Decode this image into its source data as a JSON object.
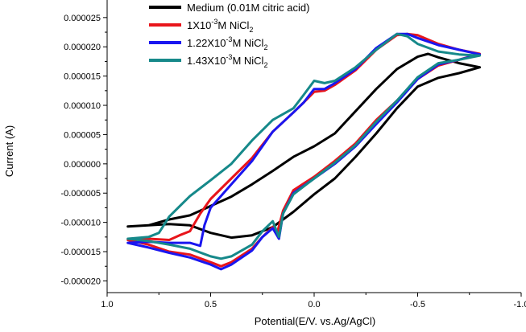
{
  "chart_data": {
    "type": "line",
    "xlabel": "Potential(E/V. vs.Ag/AgCl)",
    "ylabel": "Current (A)",
    "xlim": [
      1.0,
      -1.0
    ],
    "ylim": [
      -2.2e-05,
      2.8e-05
    ],
    "x_ticks": [
      {
        "value": 1.0,
        "label": "1.0"
      },
      {
        "value": 0.5,
        "label": "0.5"
      },
      {
        "value": 0.0,
        "label": "0.0"
      },
      {
        "value": -0.5,
        "label": "-0.5"
      },
      {
        "value": -1.0,
        "label": "-1.0"
      }
    ],
    "y_ticks": [
      {
        "value": -2e-05,
        "label": "-0.000020"
      },
      {
        "value": -1.5e-05,
        "label": "-0.000015"
      },
      {
        "value": -1e-05,
        "label": "-0.000010"
      },
      {
        "value": -5e-06,
        "label": "-0.000005"
      },
      {
        "value": 0.0,
        "label": "0.000000"
      },
      {
        "value": 5e-06,
        "label": "0.000005"
      },
      {
        "value": 1e-05,
        "label": "0.000010"
      },
      {
        "value": 1.5e-05,
        "label": "0.000015"
      },
      {
        "value": 2e-05,
        "label": "0.000020"
      },
      {
        "value": 2.5e-05,
        "label": "0.000025"
      }
    ],
    "legend_position": "top",
    "grid": false,
    "series": [
      {
        "name": "Medium (0.01M citric acid)",
        "legend_main": "Medium (0.01M citric acid)",
        "legend_sup": "",
        "legend_tail": "",
        "legend_sub": "",
        "color": "#000000",
        "points": [
          [
            0.9,
            -1.07e-05
          ],
          [
            0.8,
            -1.05e-05
          ],
          [
            0.7,
            -9.5e-06
          ],
          [
            0.6,
            -8.8e-06
          ],
          [
            0.5,
            -7.2e-06
          ],
          [
            0.4,
            -5.6e-06
          ],
          [
            0.3,
            -3.5e-06
          ],
          [
            0.2,
            -1.2e-06
          ],
          [
            0.1,
            1.2e-06
          ],
          [
            0.0,
            3e-06
          ],
          [
            -0.1,
            5.2e-06
          ],
          [
            -0.2,
            9e-06
          ],
          [
            -0.3,
            1.28e-05
          ],
          [
            -0.4,
            1.62e-05
          ],
          [
            -0.5,
            1.83e-05
          ],
          [
            -0.55,
            1.88e-05
          ],
          [
            -0.6,
            1.82e-05
          ],
          [
            -0.7,
            1.72e-05
          ],
          [
            -0.8,
            1.65e-05
          ],
          [
            -0.7,
            1.55e-05
          ],
          [
            -0.6,
            1.47e-05
          ],
          [
            -0.5,
            1.32e-05
          ],
          [
            -0.4,
            9.5e-06
          ],
          [
            -0.3,
            5.2e-06
          ],
          [
            -0.2,
            1.2e-06
          ],
          [
            -0.1,
            -2.5e-06
          ],
          [
            0.0,
            -5.2e-06
          ],
          [
            0.1,
            -8.2e-06
          ],
          [
            0.2,
            -1.08e-05
          ],
          [
            0.3,
            -1.22e-05
          ],
          [
            0.4,
            -1.26e-05
          ],
          [
            0.5,
            -1.18e-05
          ],
          [
            0.6,
            -1.05e-05
          ],
          [
            0.7,
            -1.03e-05
          ],
          [
            0.8,
            -1.05e-05
          ],
          [
            0.9,
            -1.07e-05
          ]
        ]
      },
      {
        "name": "1X10-3M NiCl2",
        "legend_main": "1X10",
        "legend_sup": "-3",
        "legend_tail": "M NiCl",
        "legend_sub": "2",
        "color": "#e8151b",
        "points": [
          [
            0.9,
            -1.3e-05
          ],
          [
            0.8,
            -1.28e-05
          ],
          [
            0.7,
            -1.3e-05
          ],
          [
            0.65,
            -1.22e-05
          ],
          [
            0.6,
            -1.15e-05
          ],
          [
            0.55,
            -8.5e-06
          ],
          [
            0.5,
            -6e-06
          ],
          [
            0.4,
            -2.5e-06
          ],
          [
            0.3,
            1e-06
          ],
          [
            0.2,
            5.5e-06
          ],
          [
            0.1,
            8.8e-06
          ],
          [
            0.05,
            1.05e-05
          ],
          [
            0.0,
            1.23e-05
          ],
          [
            -0.05,
            1.25e-05
          ],
          [
            -0.1,
            1.35e-05
          ],
          [
            -0.2,
            1.6e-05
          ],
          [
            -0.3,
            1.95e-05
          ],
          [
            -0.4,
            2.2e-05
          ],
          [
            -0.45,
            2.22e-05
          ],
          [
            -0.5,
            2.2e-05
          ],
          [
            -0.6,
            2.05e-05
          ],
          [
            -0.7,
            1.95e-05
          ],
          [
            -0.8,
            1.88e-05
          ],
          [
            -0.7,
            1.78e-05
          ],
          [
            -0.6,
            1.68e-05
          ],
          [
            -0.5,
            1.45e-05
          ],
          [
            -0.4,
            1.08e-05
          ],
          [
            -0.3,
            7.5e-06
          ],
          [
            -0.2,
            3.5e-06
          ],
          [
            -0.1,
            5e-07
          ],
          [
            0.0,
            -2.2e-06
          ],
          [
            0.1,
            -4.5e-06
          ],
          [
            0.15,
            -8e-06
          ],
          [
            0.18,
            -1.2e-05
          ],
          [
            0.2,
            -1.08e-05
          ],
          [
            0.25,
            -1.25e-05
          ],
          [
            0.3,
            -1.45e-05
          ],
          [
            0.4,
            -1.68e-05
          ],
          [
            0.45,
            -1.75e-05
          ],
          [
            0.5,
            -1.68e-05
          ],
          [
            0.6,
            -1.55e-05
          ],
          [
            0.7,
            -1.5e-05
          ],
          [
            0.8,
            -1.38e-05
          ],
          [
            0.9,
            -1.3e-05
          ]
        ]
      },
      {
        "name": "1.22X10-3M NiCl2",
        "legend_main": "1.22X10",
        "legend_sup": "-3",
        "legend_tail": "M NiCl",
        "legend_sub": "2",
        "color": "#1a16f0",
        "points": [
          [
            0.9,
            -1.35e-05
          ],
          [
            0.8,
            -1.33e-05
          ],
          [
            0.7,
            -1.35e-05
          ],
          [
            0.6,
            -1.35e-05
          ],
          [
            0.55,
            -1.4e-05
          ],
          [
            0.53,
            -1.05e-05
          ],
          [
            0.5,
            -7.5e-06
          ],
          [
            0.4,
            -3.5e-06
          ],
          [
            0.3,
            5e-07
          ],
          [
            0.2,
            5.5e-06
          ],
          [
            0.1,
            8.8e-06
          ],
          [
            0.05,
            1.05e-05
          ],
          [
            0.0,
            1.28e-05
          ],
          [
            -0.05,
            1.28e-05
          ],
          [
            -0.1,
            1.38e-05
          ],
          [
            -0.2,
            1.62e-05
          ],
          [
            -0.3,
            1.98e-05
          ],
          [
            -0.4,
            2.22e-05
          ],
          [
            -0.45,
            2.22e-05
          ],
          [
            -0.5,
            2.15e-05
          ],
          [
            -0.6,
            2.03e-05
          ],
          [
            -0.7,
            1.95e-05
          ],
          [
            -0.8,
            1.87e-05
          ],
          [
            -0.7,
            1.78e-05
          ],
          [
            -0.6,
            1.7e-05
          ],
          [
            -0.5,
            1.45e-05
          ],
          [
            -0.4,
            1.05e-05
          ],
          [
            -0.3,
            6.8e-06
          ],
          [
            -0.2,
            3e-06
          ],
          [
            -0.1,
            0.0
          ],
          [
            0.0,
            -2.5e-06
          ],
          [
            0.1,
            -5e-06
          ],
          [
            0.15,
            -8.5e-06
          ],
          [
            0.17,
            -1.28e-05
          ],
          [
            0.2,
            -1.1e-05
          ],
          [
            0.25,
            -1.25e-05
          ],
          [
            0.3,
            -1.48e-05
          ],
          [
            0.4,
            -1.72e-05
          ],
          [
            0.45,
            -1.8e-05
          ],
          [
            0.5,
            -1.72e-05
          ],
          [
            0.6,
            -1.6e-05
          ],
          [
            0.7,
            -1.52e-05
          ],
          [
            0.8,
            -1.43e-05
          ],
          [
            0.9,
            -1.35e-05
          ]
        ]
      },
      {
        "name": "1.43X10-3M NiCl2",
        "legend_main": "1.43X10",
        "legend_sup": "-3",
        "legend_tail": "M NiCl",
        "legend_sub": "2",
        "color": "#16898a",
        "points": [
          [
            0.9,
            -1.28e-05
          ],
          [
            0.8,
            -1.25e-05
          ],
          [
            0.75,
            -1.18e-05
          ],
          [
            0.7,
            -9e-06
          ],
          [
            0.6,
            -5.5e-06
          ],
          [
            0.5,
            -2.8e-06
          ],
          [
            0.4,
            0.0
          ],
          [
            0.3,
            4e-06
          ],
          [
            0.2,
            7.5e-06
          ],
          [
            0.1,
            9.5e-06
          ],
          [
            0.05,
            1.18e-05
          ],
          [
            0.0,
            1.42e-05
          ],
          [
            -0.05,
            1.38e-05
          ],
          [
            -0.1,
            1.42e-05
          ],
          [
            -0.2,
            1.65e-05
          ],
          [
            -0.3,
            1.95e-05
          ],
          [
            -0.4,
            2.22e-05
          ],
          [
            -0.45,
            2.18e-05
          ],
          [
            -0.5,
            2.05e-05
          ],
          [
            -0.6,
            1.92e-05
          ],
          [
            -0.7,
            1.87e-05
          ],
          [
            -0.8,
            1.85e-05
          ],
          [
            -0.7,
            1.78e-05
          ],
          [
            -0.6,
            1.72e-05
          ],
          [
            -0.5,
            1.48e-05
          ],
          [
            -0.4,
            1.08e-05
          ],
          [
            -0.3,
            7.2e-06
          ],
          [
            -0.2,
            3.2e-06
          ],
          [
            -0.1,
            2e-07
          ],
          [
            0.0,
            -2.5e-06
          ],
          [
            0.1,
            -5.2e-06
          ],
          [
            0.15,
            -8.5e-06
          ],
          [
            0.17,
            -1.25e-05
          ],
          [
            0.2,
            -9.8e-06
          ],
          [
            0.25,
            -1.15e-05
          ],
          [
            0.3,
            -1.38e-05
          ],
          [
            0.4,
            -1.58e-05
          ],
          [
            0.45,
            -1.62e-05
          ],
          [
            0.5,
            -1.58e-05
          ],
          [
            0.6,
            -1.45e-05
          ],
          [
            0.7,
            -1.38e-05
          ],
          [
            0.8,
            -1.32e-05
          ],
          [
            0.9,
            -1.28e-05
          ]
        ]
      }
    ]
  }
}
